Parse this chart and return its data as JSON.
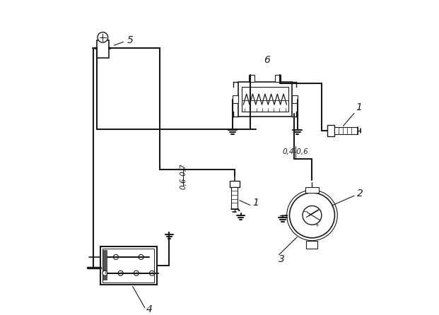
{
  "bg_color": "#ffffff",
  "line_color": "#1a1a1a",
  "line_width": 1.5,
  "fig_width": 6.21,
  "fig_height": 4.46,
  "dpi": 100
}
